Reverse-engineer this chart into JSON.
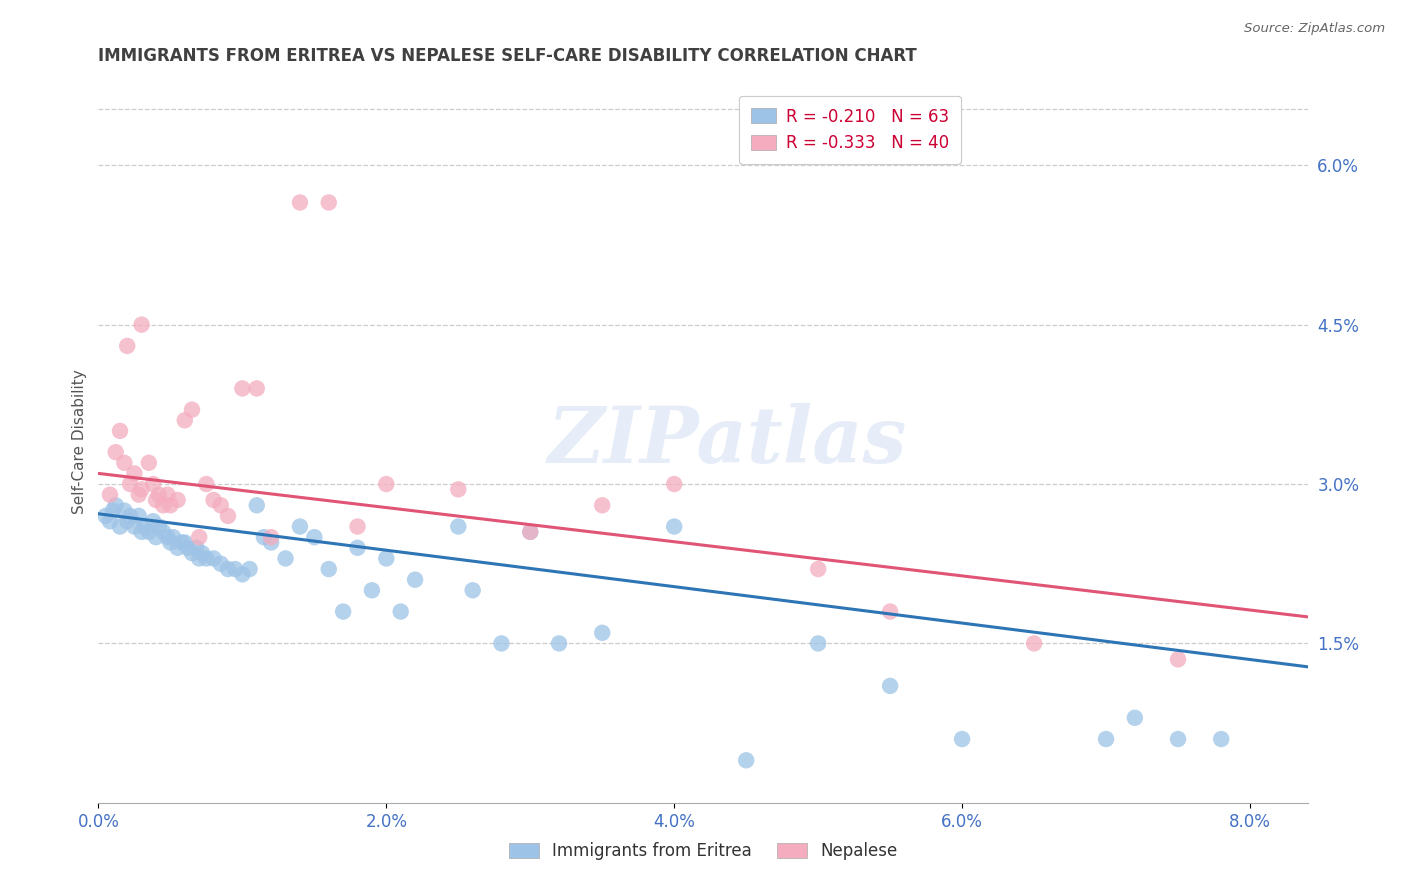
{
  "title": "IMMIGRANTS FROM ERITREA VS NEPALESE SELF-CARE DISABILITY CORRELATION CHART",
  "source": "Source: ZipAtlas.com",
  "ylabel": "Self-Care Disability",
  "x_tick_labels": [
    "0.0%",
    "2.0%",
    "4.0%",
    "6.0%",
    "8.0%"
  ],
  "x_tick_values": [
    0.0,
    2.0,
    4.0,
    6.0,
    8.0
  ],
  "y_tick_labels_right": [
    "6.0%",
    "4.5%",
    "3.0%",
    "1.5%"
  ],
  "y_tick_values_right": [
    6.0,
    4.5,
    3.0,
    1.5
  ],
  "xlim": [
    0.0,
    8.4
  ],
  "ylim": [
    0.0,
    6.8
  ],
  "legend_entries": [
    {
      "label": "Immigrants from Eritrea",
      "R": -0.21,
      "N": 63,
      "color": "#9DC3E6"
    },
    {
      "label": "Nepalese",
      "R": -0.333,
      "N": 40,
      "color": "#F4ACBE"
    }
  ],
  "watermark": "ZIPatlas",
  "background_color": "#ffffff",
  "grid_color": "#cccccc",
  "title_color": "#404040",
  "axis_label_color": "#4472c4",
  "blue_line_color": "#2E75B6",
  "pink_line_color": "#E05575",
  "blue_scatter_x": [
    0.05,
    0.08,
    0.1,
    0.12,
    0.15,
    0.18,
    0.2,
    0.22,
    0.25,
    0.28,
    0.3,
    0.32,
    0.35,
    0.38,
    0.4,
    0.42,
    0.45,
    0.48,
    0.5,
    0.52,
    0.55,
    0.58,
    0.6,
    0.62,
    0.65,
    0.68,
    0.7,
    0.72,
    0.75,
    0.8,
    0.85,
    0.9,
    0.95,
    1.0,
    1.05,
    1.1,
    1.15,
    1.2,
    1.3,
    1.4,
    1.5,
    1.6,
    1.7,
    1.8,
    1.9,
    2.0,
    2.1,
    2.2,
    2.5,
    2.6,
    2.8,
    3.0,
    3.2,
    3.5,
    4.0,
    4.5,
    5.0,
    5.5,
    6.0,
    7.0,
    7.2,
    7.5,
    7.8
  ],
  "blue_scatter_y": [
    2.7,
    2.65,
    2.75,
    2.8,
    2.6,
    2.75,
    2.65,
    2.7,
    2.6,
    2.7,
    2.55,
    2.6,
    2.55,
    2.65,
    2.5,
    2.6,
    2.55,
    2.5,
    2.45,
    2.5,
    2.4,
    2.45,
    2.45,
    2.4,
    2.35,
    2.4,
    2.3,
    2.35,
    2.3,
    2.3,
    2.25,
    2.2,
    2.2,
    2.15,
    2.2,
    2.8,
    2.5,
    2.45,
    2.3,
    2.6,
    2.5,
    2.2,
    1.8,
    2.4,
    2.0,
    2.3,
    1.8,
    2.1,
    2.6,
    2.0,
    1.5,
    2.55,
    1.5,
    1.6,
    2.6,
    0.4,
    1.5,
    1.1,
    0.6,
    0.6,
    0.8,
    0.6,
    0.6
  ],
  "pink_scatter_x": [
    0.08,
    0.12,
    0.15,
    0.18,
    0.22,
    0.25,
    0.28,
    0.3,
    0.35,
    0.38,
    0.4,
    0.42,
    0.45,
    0.48,
    0.5,
    0.55,
    0.6,
    0.65,
    0.7,
    0.75,
    0.8,
    0.85,
    0.9,
    1.0,
    1.1,
    1.2,
    1.4,
    1.6,
    1.8,
    2.0,
    2.5,
    3.0,
    3.5,
    4.0,
    5.0,
    5.5,
    6.5,
    7.5,
    0.2,
    0.3
  ],
  "pink_scatter_y": [
    2.9,
    3.3,
    3.5,
    3.2,
    3.0,
    3.1,
    2.9,
    2.95,
    3.2,
    3.0,
    2.85,
    2.9,
    2.8,
    2.9,
    2.8,
    2.85,
    3.6,
    3.7,
    2.5,
    3.0,
    2.85,
    2.8,
    2.7,
    3.9,
    3.9,
    2.5,
    5.65,
    5.65,
    2.6,
    3.0,
    2.95,
    2.55,
    2.8,
    3.0,
    2.2,
    1.8,
    1.5,
    1.35,
    4.3,
    4.5
  ],
  "blue_line_x": [
    0.0,
    8.4
  ],
  "blue_line_y_start": 2.72,
  "blue_line_y_end": 1.28,
  "pink_line_x": [
    0.0,
    8.4
  ],
  "pink_line_y_start": 3.1,
  "pink_line_y_end": 1.75
}
